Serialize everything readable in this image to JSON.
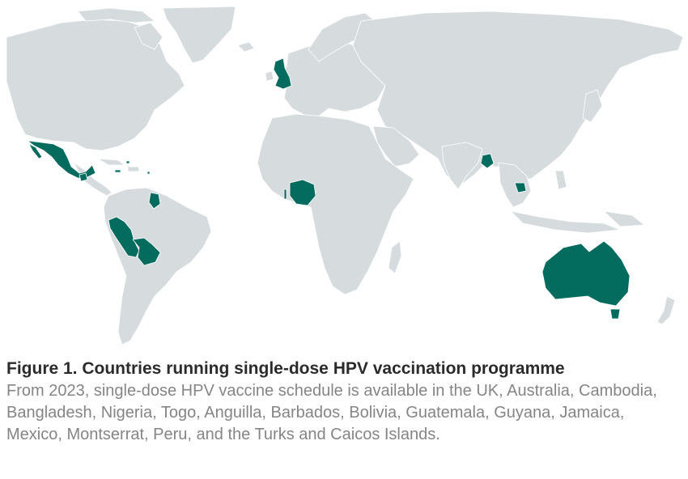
{
  "figure": {
    "title": "Figure 1. Countries running single-dose HPV vaccination programme",
    "description": "From 2023, single-dose HPV vaccine schedule is available in the UK, Australia, Cambodia, Bangladesh, Nigeria, Togo, Anguilla, Barbados, Bolivia, Guatemala, Guyana, Jamaica, Mexico, Montserrat, Peru, and the Turks and Caicos Islands."
  },
  "map": {
    "type": "choropleth-world",
    "highlight_color": "#046c5f",
    "base_color": "#d6dcde",
    "highlighted_countries": [
      "United Kingdom",
      "Australia",
      "Cambodia",
      "Bangladesh",
      "Nigeria",
      "Togo",
      "Anguilla",
      "Barbados",
      "Bolivia",
      "Guatemala",
      "Guyana",
      "Jamaica",
      "Mexico",
      "Montserrat",
      "Peru",
      "Turks and Caicos Islands"
    ]
  }
}
